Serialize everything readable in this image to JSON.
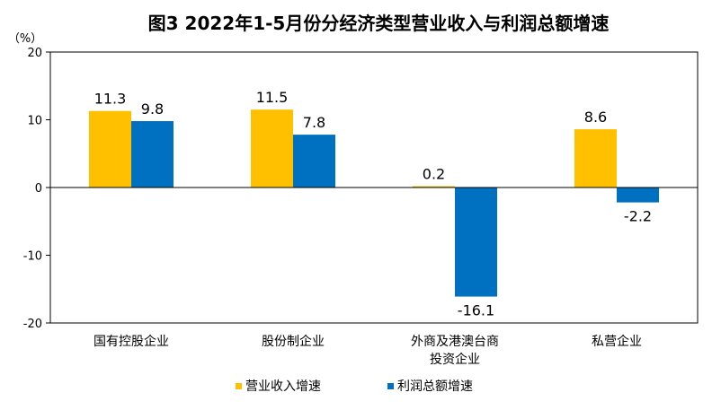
{
  "chart_data": {
    "type": "bar",
    "title": "图3 2022年1-5月份分经济类型营业收入与利润总额增速",
    "ylabel": "（%）",
    "ylim": [
      -20,
      20
    ],
    "yticks": [
      "20",
      "10",
      "0",
      "-10",
      "-20"
    ],
    "categories": [
      [
        "国有控股企业"
      ],
      [
        "股份制企业"
      ],
      [
        "外商及港澳台商",
        "投资企业"
      ],
      [
        "私营企业"
      ]
    ],
    "series": [
      {
        "name": "营业收入增速",
        "color": "#FFC000",
        "values": [
          11.3,
          11.5,
          0.2,
          8.6
        ],
        "labels": [
          "11.3",
          "11.5",
          "0.2",
          "8.6"
        ]
      },
      {
        "name": "利润总额增速",
        "color": "#0070C0",
        "values": [
          9.8,
          7.8,
          -16.1,
          -2.2
        ],
        "labels": [
          "9.8",
          "7.8",
          "-16.1",
          "-2.2"
        ]
      }
    ],
    "legend_position": "bottom-center",
    "grid": false
  }
}
